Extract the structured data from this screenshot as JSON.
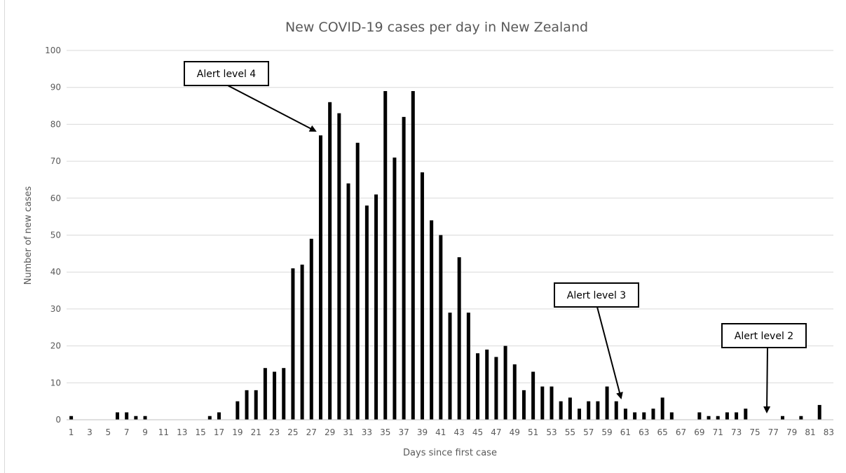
{
  "chart_data": {
    "type": "bar",
    "title": "New COVID-19 cases per day in New Zealand",
    "xlabel": "Days since first case",
    "ylabel": "Number of new cases",
    "ylim": [
      0,
      100
    ],
    "y_ticks": [
      0,
      10,
      20,
      30,
      40,
      50,
      60,
      70,
      80,
      90,
      100
    ],
    "x_tick_labels": [
      "1",
      "3",
      "5",
      "7",
      "9",
      "11",
      "13",
      "15",
      "17",
      "19",
      "21",
      "23",
      "25",
      "27",
      "29",
      "31",
      "33",
      "35",
      "37",
      "39",
      "41",
      "43",
      "45",
      "47",
      "49",
      "51",
      "53",
      "55",
      "57",
      "59",
      "61",
      "63",
      "65",
      "67",
      "69",
      "71",
      "73",
      "75",
      "77",
      "79",
      "81",
      "83"
    ],
    "grid": true,
    "legend": "none",
    "bar_color": "#000000",
    "x": [
      1,
      2,
      3,
      4,
      5,
      6,
      7,
      8,
      9,
      10,
      11,
      12,
      13,
      14,
      15,
      16,
      17,
      18,
      19,
      20,
      21,
      22,
      23,
      24,
      25,
      26,
      27,
      28,
      29,
      30,
      31,
      32,
      33,
      34,
      35,
      36,
      37,
      38,
      39,
      40,
      41,
      42,
      43,
      44,
      45,
      46,
      47,
      48,
      49,
      50,
      51,
      52,
      53,
      54,
      55,
      56,
      57,
      58,
      59,
      60,
      61,
      62,
      63,
      64,
      65,
      66,
      67,
      68,
      69,
      70,
      71,
      72,
      73,
      74,
      75,
      76,
      77,
      78,
      79,
      80,
      81,
      82,
      83
    ],
    "values": [
      1,
      0,
      0,
      0,
      0,
      2,
      2,
      1,
      1,
      0,
      0,
      0,
      0,
      0,
      0,
      1,
      2,
      0,
      5,
      8,
      8,
      14,
      13,
      14,
      41,
      42,
      49,
      77,
      86,
      83,
      64,
      75,
      58,
      61,
      89,
      71,
      82,
      89,
      67,
      54,
      50,
      29,
      44,
      29,
      18,
      19,
      17,
      20,
      15,
      8,
      13,
      9,
      9,
      5,
      6,
      3,
      5,
      5,
      9,
      5,
      3,
      2,
      2,
      3,
      6,
      2,
      0,
      0,
      2,
      1,
      1,
      2,
      2,
      3,
      0,
      0,
      0,
      1,
      0,
      1,
      0,
      4,
      0
    ],
    "annotations": [
      {
        "text": "Alert level 4",
        "day": 27
      },
      {
        "text": "Alert level 3",
        "day": 61
      },
      {
        "text": "Alert level 2",
        "day": 77
      }
    ]
  }
}
